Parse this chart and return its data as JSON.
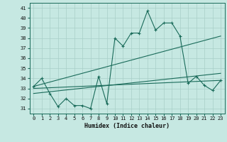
{
  "xlabel": "Humidex (Indice chaleur)",
  "xlim": [
    -0.5,
    23.5
  ],
  "ylim": [
    30.5,
    41.5
  ],
  "xticks": [
    0,
    1,
    2,
    3,
    4,
    5,
    6,
    7,
    8,
    9,
    10,
    11,
    12,
    13,
    14,
    15,
    16,
    17,
    18,
    19,
    20,
    21,
    22,
    23
  ],
  "yticks": [
    31,
    32,
    33,
    34,
    35,
    36,
    37,
    38,
    39,
    40,
    41
  ],
  "bg_color": "#c6e8e2",
  "grid_color": "#a8cfc8",
  "line_color": "#1a6b5a",
  "line1_y": [
    33.2,
    34.0,
    32.5,
    31.2,
    32.0,
    31.3,
    31.3,
    31.0,
    34.2,
    31.5,
    38.0,
    37.2,
    38.5,
    38.5,
    40.7,
    38.8,
    39.5,
    39.5,
    38.2,
    33.5,
    34.2,
    33.3,
    32.8,
    33.8
  ],
  "line2_x": [
    0,
    23
  ],
  "line2_y": [
    33.2,
    38.2
  ],
  "line3_x": [
    0,
    23
  ],
  "line3_y": [
    33.0,
    33.8
  ],
  "line4_x": [
    0,
    23
  ],
  "line4_y": [
    32.5,
    34.5
  ]
}
